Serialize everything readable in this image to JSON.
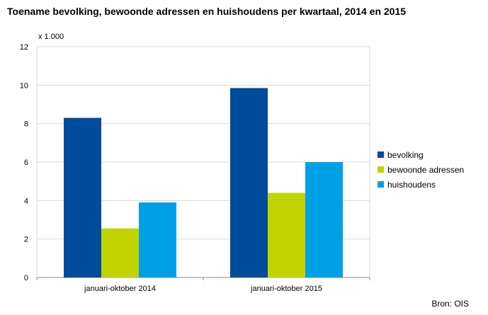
{
  "colors": {
    "bevolking": "#004b9b",
    "bewoonde_adressen": "#c1d400",
    "huishoudens": "#00a0e6",
    "grid": "#d9d9d9",
    "axis": "#888888"
  },
  "source": "Bron: OIS",
  "chart_data": {
    "type": "bar",
    "title": "Toename bevolking, bewoonde adressen en huishoudens per kwartaal, 2014 en 2015",
    "unit_label": "x 1.000",
    "categories": [
      "januari-oktober 2014",
      "januari-oktober 2015"
    ],
    "series": [
      {
        "name": "bevolking",
        "values": [
          8.3,
          9.85
        ]
      },
      {
        "name": "bewoonde adressen",
        "values": [
          2.55,
          4.4
        ]
      },
      {
        "name": "huishoudens",
        "values": [
          3.9,
          6.0
        ]
      }
    ],
    "ylim": [
      0,
      12
    ],
    "yticks": [
      "0",
      "2",
      "4",
      "6",
      "8",
      "10",
      "12"
    ],
    "grid": true,
    "legend_position": "right"
  }
}
